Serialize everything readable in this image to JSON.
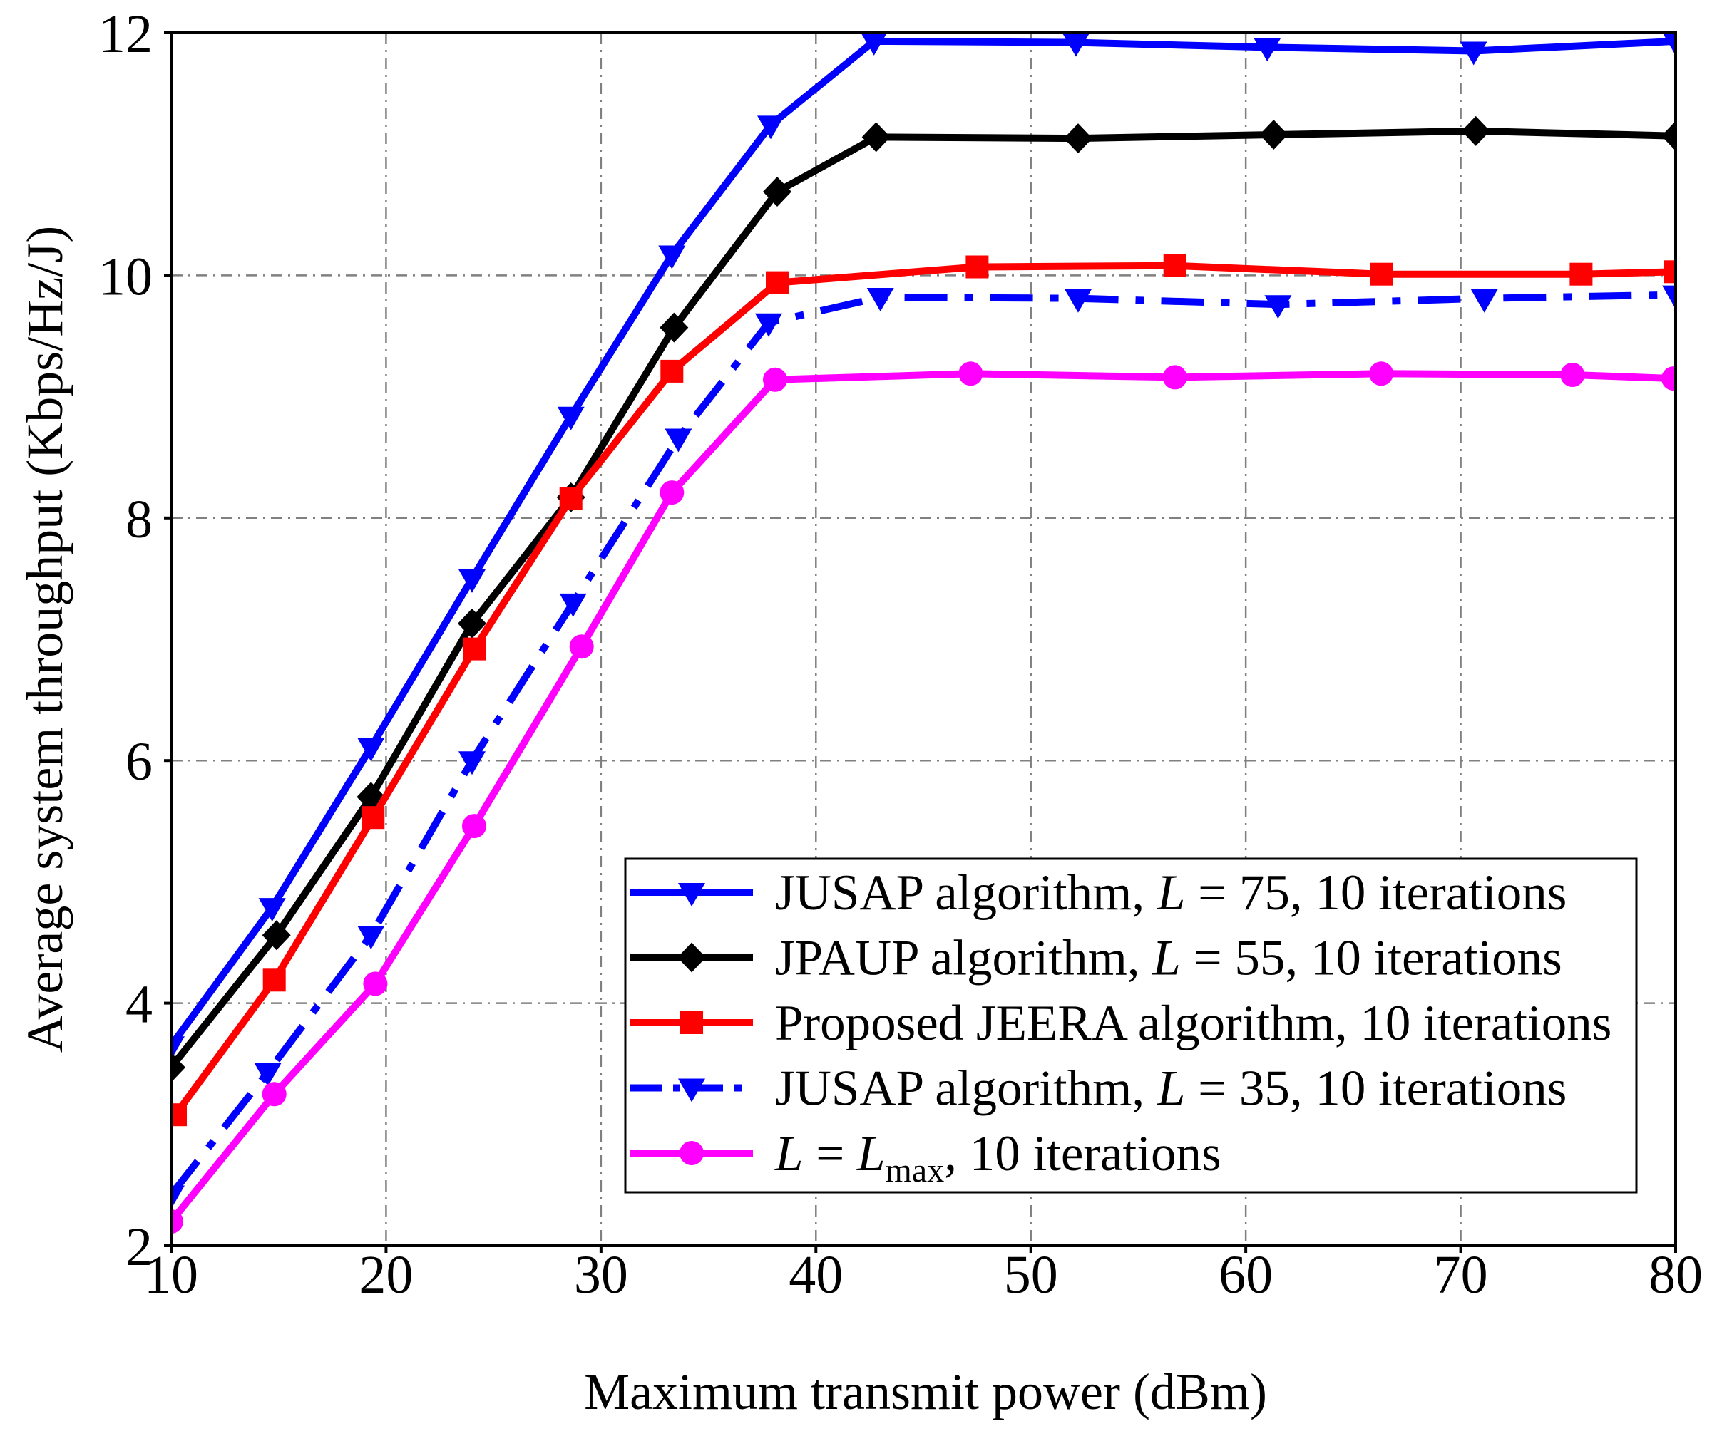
{
  "chart_data": {
    "type": "line",
    "xlabel": "Maximum transmit power (dBm)",
    "ylabel": "Average system throughput (Kbps/Hz/J)",
    "xlim": [
      10,
      80
    ],
    "ylim": [
      2,
      12
    ],
    "xticks": [
      10,
      20,
      30,
      40,
      50,
      60,
      70,
      80
    ],
    "yticks": [
      2,
      4,
      6,
      8,
      10,
      12
    ],
    "grid": true,
    "legend_loc": "lower right",
    "series": [
      {
        "label": [
          {
            "text": "JUSAP algorithm, "
          },
          {
            "text": "L",
            "italic": true
          },
          {
            "text": " = 75, 10 iterations"
          }
        ],
        "color": "#0000FF",
        "marker": "triangle-down",
        "dash_dot": false,
        "x": [
          10,
          14.7,
          19.3,
          24.0,
          28.6,
          33.3,
          37.9,
          42.7,
          52.1,
          61.0,
          70.6,
          80
        ],
        "y": [
          3.65,
          4.79,
          6.11,
          7.5,
          8.84,
          10.17,
          11.24,
          11.93,
          11.92,
          11.88,
          11.85,
          11.93
        ]
      },
      {
        "label": [
          {
            "text": "JPAUP algorithm, "
          },
          {
            "text": "L",
            "italic": true
          },
          {
            "text": " = 55, 10 iterations"
          }
        ],
        "color": "#000000",
        "marker": "diamond",
        "dash_dot": false,
        "x": [
          10,
          14.9,
          19.3,
          24.0,
          28.6,
          33.4,
          38.2,
          42.8,
          52.2,
          61.3,
          70.7,
          80
        ],
        "y": [
          3.47,
          4.56,
          5.7,
          7.13,
          8.17,
          9.57,
          10.69,
          11.14,
          11.13,
          11.16,
          11.19,
          11.15
        ]
      },
      {
        "label": [
          {
            "text": "Proposed JEERA algorithm, 10 iterations"
          }
        ],
        "color": "#FF0000",
        "marker": "square",
        "dash_dot": false,
        "x": [
          10.2,
          14.8,
          19.4,
          24.1,
          28.6,
          33.3,
          38.2,
          47.5,
          56.7,
          66.3,
          75.6,
          80
        ],
        "y": [
          3.08,
          4.19,
          5.53,
          6.92,
          8.16,
          9.21,
          9.94,
          10.07,
          10.08,
          10.01,
          10.01,
          10.03
        ]
      },
      {
        "label": [
          {
            "text": "JUSAP algorithm, "
          },
          {
            "text": "L",
            "italic": true
          },
          {
            "text": " = 35, 10 iterations"
          }
        ],
        "color": "#0000FF",
        "marker": "triangle-down",
        "dash_dot": true,
        "x": [
          10,
          14.5,
          19.3,
          24.0,
          28.7,
          33.6,
          37.8,
          43.0,
          52.2,
          61.5,
          71.1,
          80
        ],
        "y": [
          2.42,
          3.43,
          4.56,
          6.0,
          7.3,
          8.66,
          9.61,
          9.82,
          9.81,
          9.76,
          9.81,
          9.84
        ]
      },
      {
        "label": [
          {
            "text": "L",
            "italic": true
          },
          {
            "text": " = "
          },
          {
            "text": "L",
            "italic": true
          },
          {
            "text": "max",
            "sub": true
          },
          {
            "text": ", 10 iterations"
          }
        ],
        "color": "#FF00FF",
        "marker": "circle",
        "dash_dot": false,
        "x": [
          10,
          14.8,
          19.5,
          24.1,
          29.1,
          33.3,
          38.1,
          47.2,
          56.7,
          66.3,
          75.2,
          79.9
        ],
        "y": [
          2.2,
          3.25,
          4.16,
          5.46,
          6.94,
          8.21,
          9.14,
          9.19,
          9.16,
          9.19,
          9.18,
          9.15
        ]
      }
    ]
  }
}
